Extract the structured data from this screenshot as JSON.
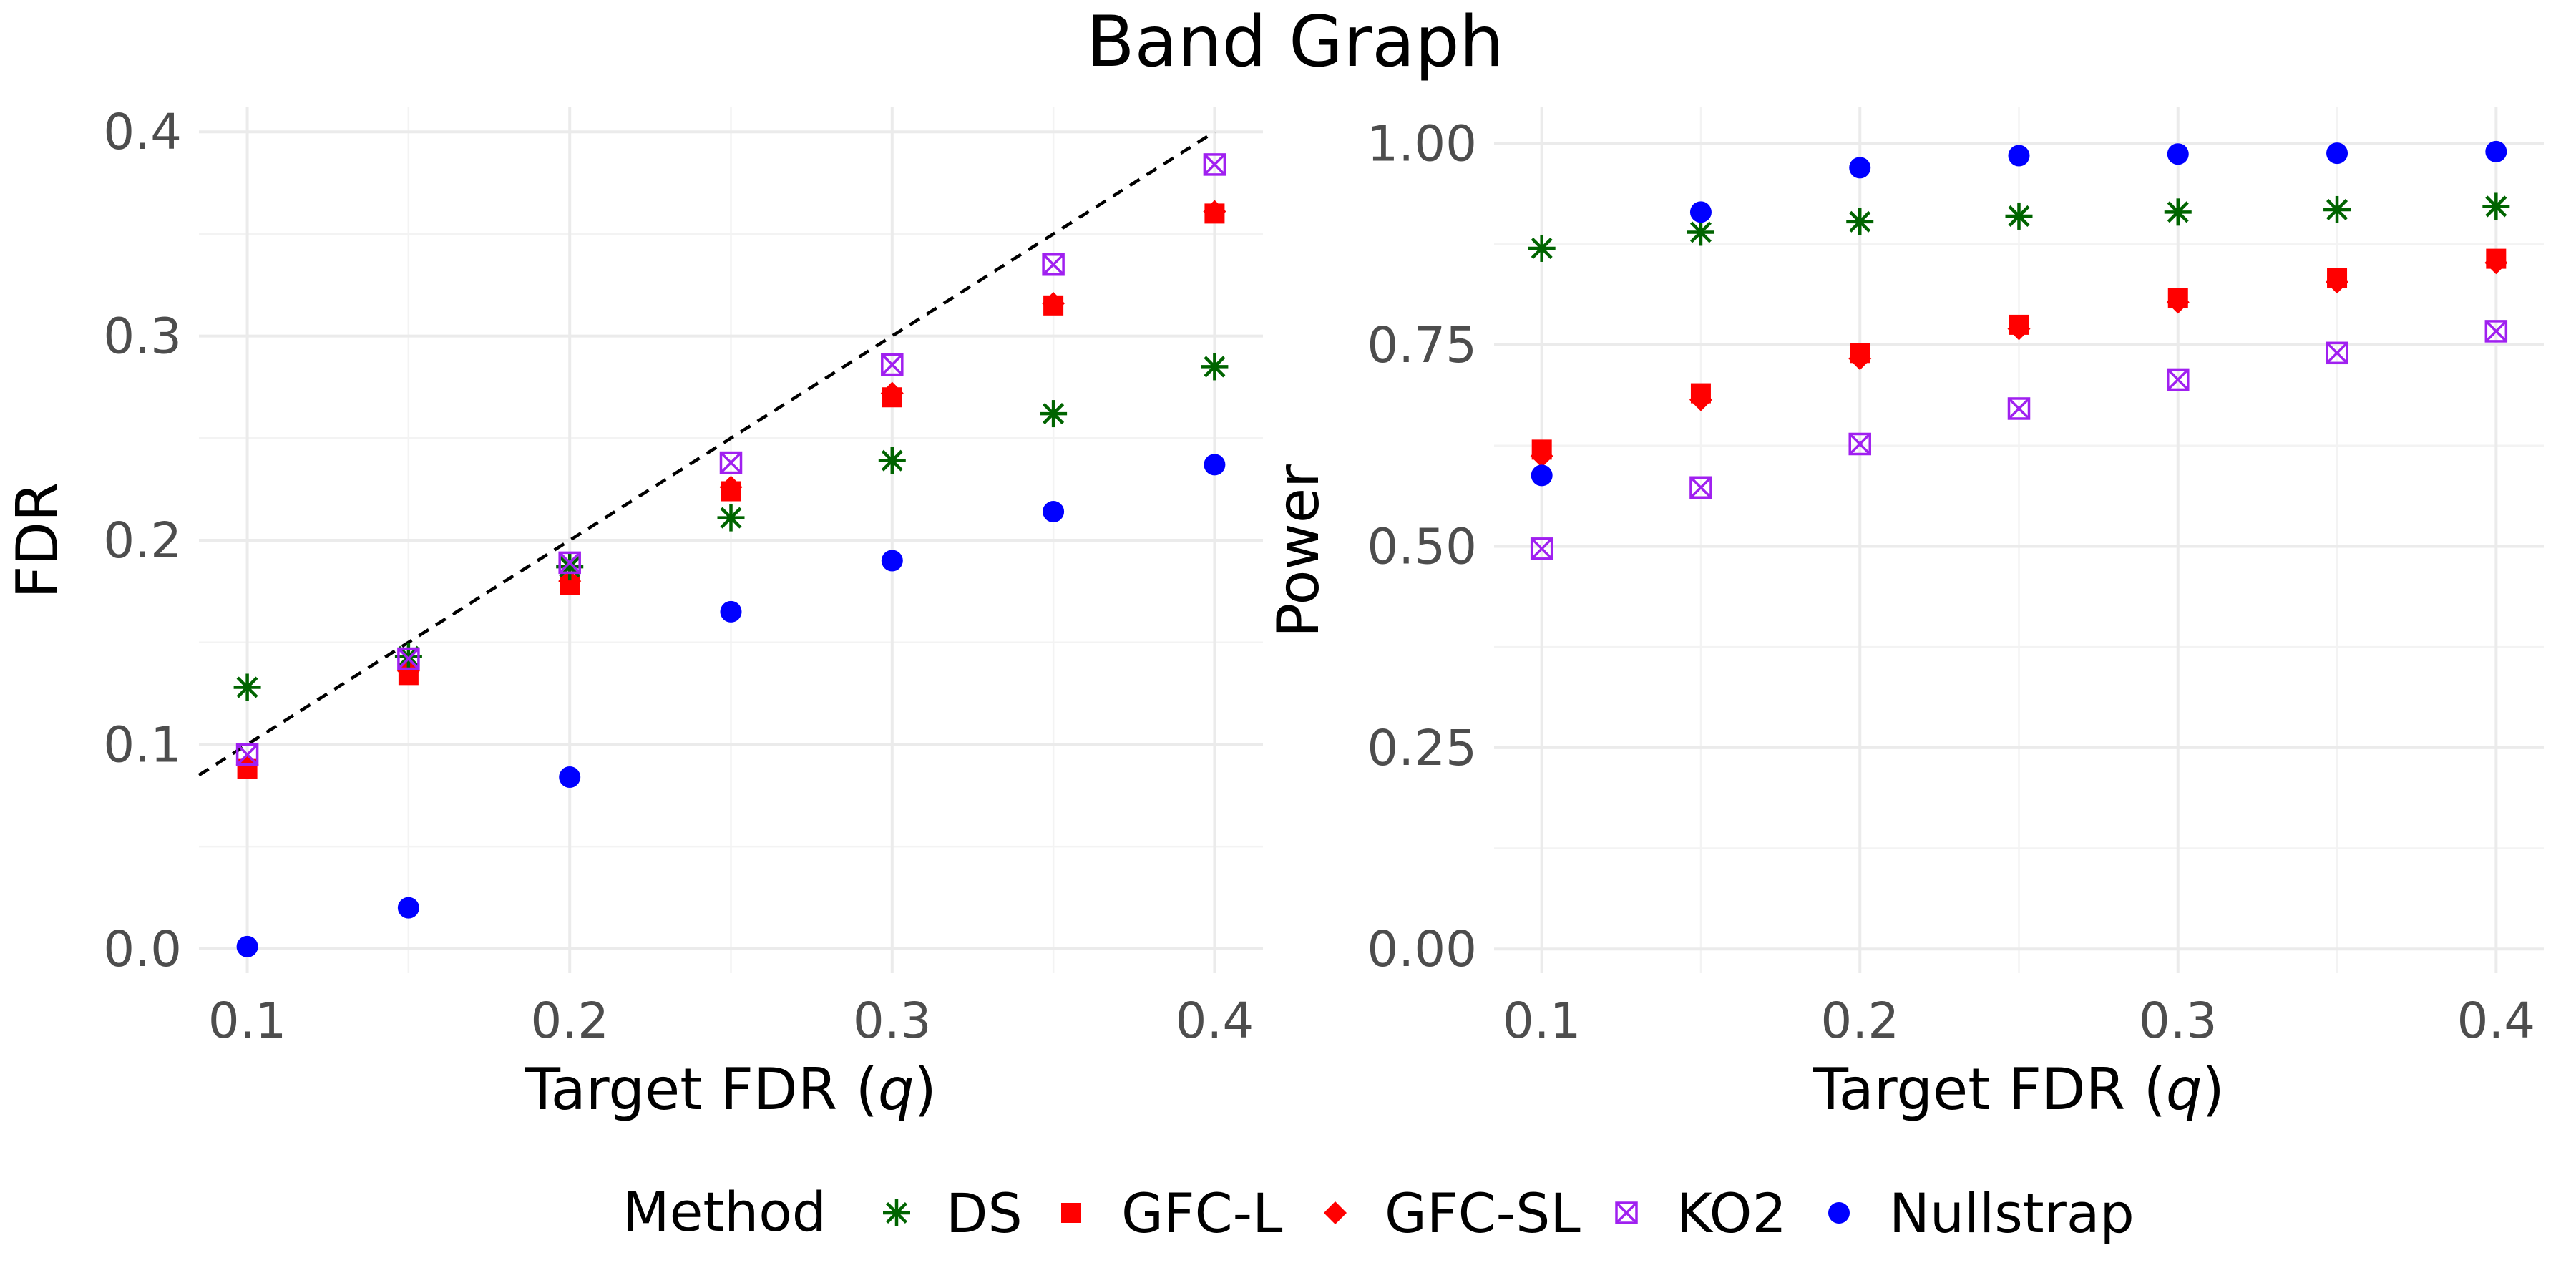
{
  "title": "Band Graph",
  "colors": {
    "DS": "#006400",
    "GFC-L": "#ff0000",
    "GFC-SL": "#ff0000",
    "KO2": "#a020f0",
    "Nullstrap": "#0000ff",
    "reference_line": "#000000"
  },
  "legend": {
    "title": "Method",
    "position": "bottom",
    "items": [
      {
        "name": "DS",
        "shape": "asterisk"
      },
      {
        "name": "GFC-L",
        "shape": "square"
      },
      {
        "name": "GFC-SL",
        "shape": "diamond"
      },
      {
        "name": "KO2",
        "shape": "boxed-x"
      },
      {
        "name": "Nullstrap",
        "shape": "circle"
      }
    ]
  },
  "chart_data": [
    {
      "type": "scatter",
      "xlabel_text": "Target FDR (",
      "xlabel_symbol": "q",
      "xlabel_close": ")",
      "ylabel": "FDR",
      "x": [
        0.1,
        0.15,
        0.2,
        0.25,
        0.3,
        0.35,
        0.4
      ],
      "xlim": [
        0.085,
        0.415
      ],
      "ylim": [
        -0.012,
        0.412
      ],
      "xticks": [
        "0.1",
        "0.2",
        "0.3",
        "0.4"
      ],
      "yticks": [
        "0.0",
        "0.1",
        "0.2",
        "0.3",
        "0.4"
      ],
      "grid": true,
      "reference_line": "y = x (dashed)",
      "series": [
        {
          "name": "DS",
          "values": [
            0.128,
            0.143,
            0.187,
            0.211,
            0.239,
            0.262,
            0.285
          ]
        },
        {
          "name": "GFC-L",
          "values": [
            0.088,
            0.134,
            0.178,
            0.224,
            0.27,
            0.315,
            0.36
          ]
        },
        {
          "name": "GFC-SL",
          "values": [
            0.09,
            0.136,
            0.18,
            0.226,
            0.272,
            0.316,
            0.361
          ]
        },
        {
          "name": "KO2",
          "values": [
            0.095,
            0.142,
            0.189,
            0.238,
            0.286,
            0.335,
            0.384
          ]
        },
        {
          "name": "Nullstrap",
          "values": [
            0.001,
            0.02,
            0.084,
            0.165,
            0.19,
            0.214,
            0.237
          ]
        }
      ]
    },
    {
      "type": "scatter",
      "xlabel_text": "Target FDR (",
      "xlabel_symbol": "q",
      "xlabel_close": ")",
      "ylabel": "Power",
      "x": [
        0.1,
        0.15,
        0.2,
        0.25,
        0.3,
        0.35,
        0.4
      ],
      "xlim": [
        0.085,
        0.415
      ],
      "ylim": [
        -0.03,
        1.045
      ],
      "xticks": [
        "0.1",
        "0.2",
        "0.3",
        "0.4"
      ],
      "yticks": [
        "0.00",
        "0.25",
        "0.50",
        "0.75",
        "1.00"
      ],
      "grid": true,
      "series": [
        {
          "name": "DS",
          "values": [
            0.87,
            0.89,
            0.903,
            0.91,
            0.915,
            0.918,
            0.922
          ]
        },
        {
          "name": "GFC-L",
          "values": [
            0.62,
            0.69,
            0.74,
            0.775,
            0.808,
            0.833,
            0.857
          ]
        },
        {
          "name": "GFC-SL",
          "values": [
            0.612,
            0.682,
            0.733,
            0.77,
            0.803,
            0.828,
            0.852
          ]
        },
        {
          "name": "KO2",
          "values": [
            0.497,
            0.573,
            0.627,
            0.671,
            0.707,
            0.74,
            0.767
          ]
        },
        {
          "name": "Nullstrap",
          "values": [
            0.588,
            0.915,
            0.97,
            0.985,
            0.987,
            0.988,
            0.99
          ]
        }
      ]
    }
  ]
}
